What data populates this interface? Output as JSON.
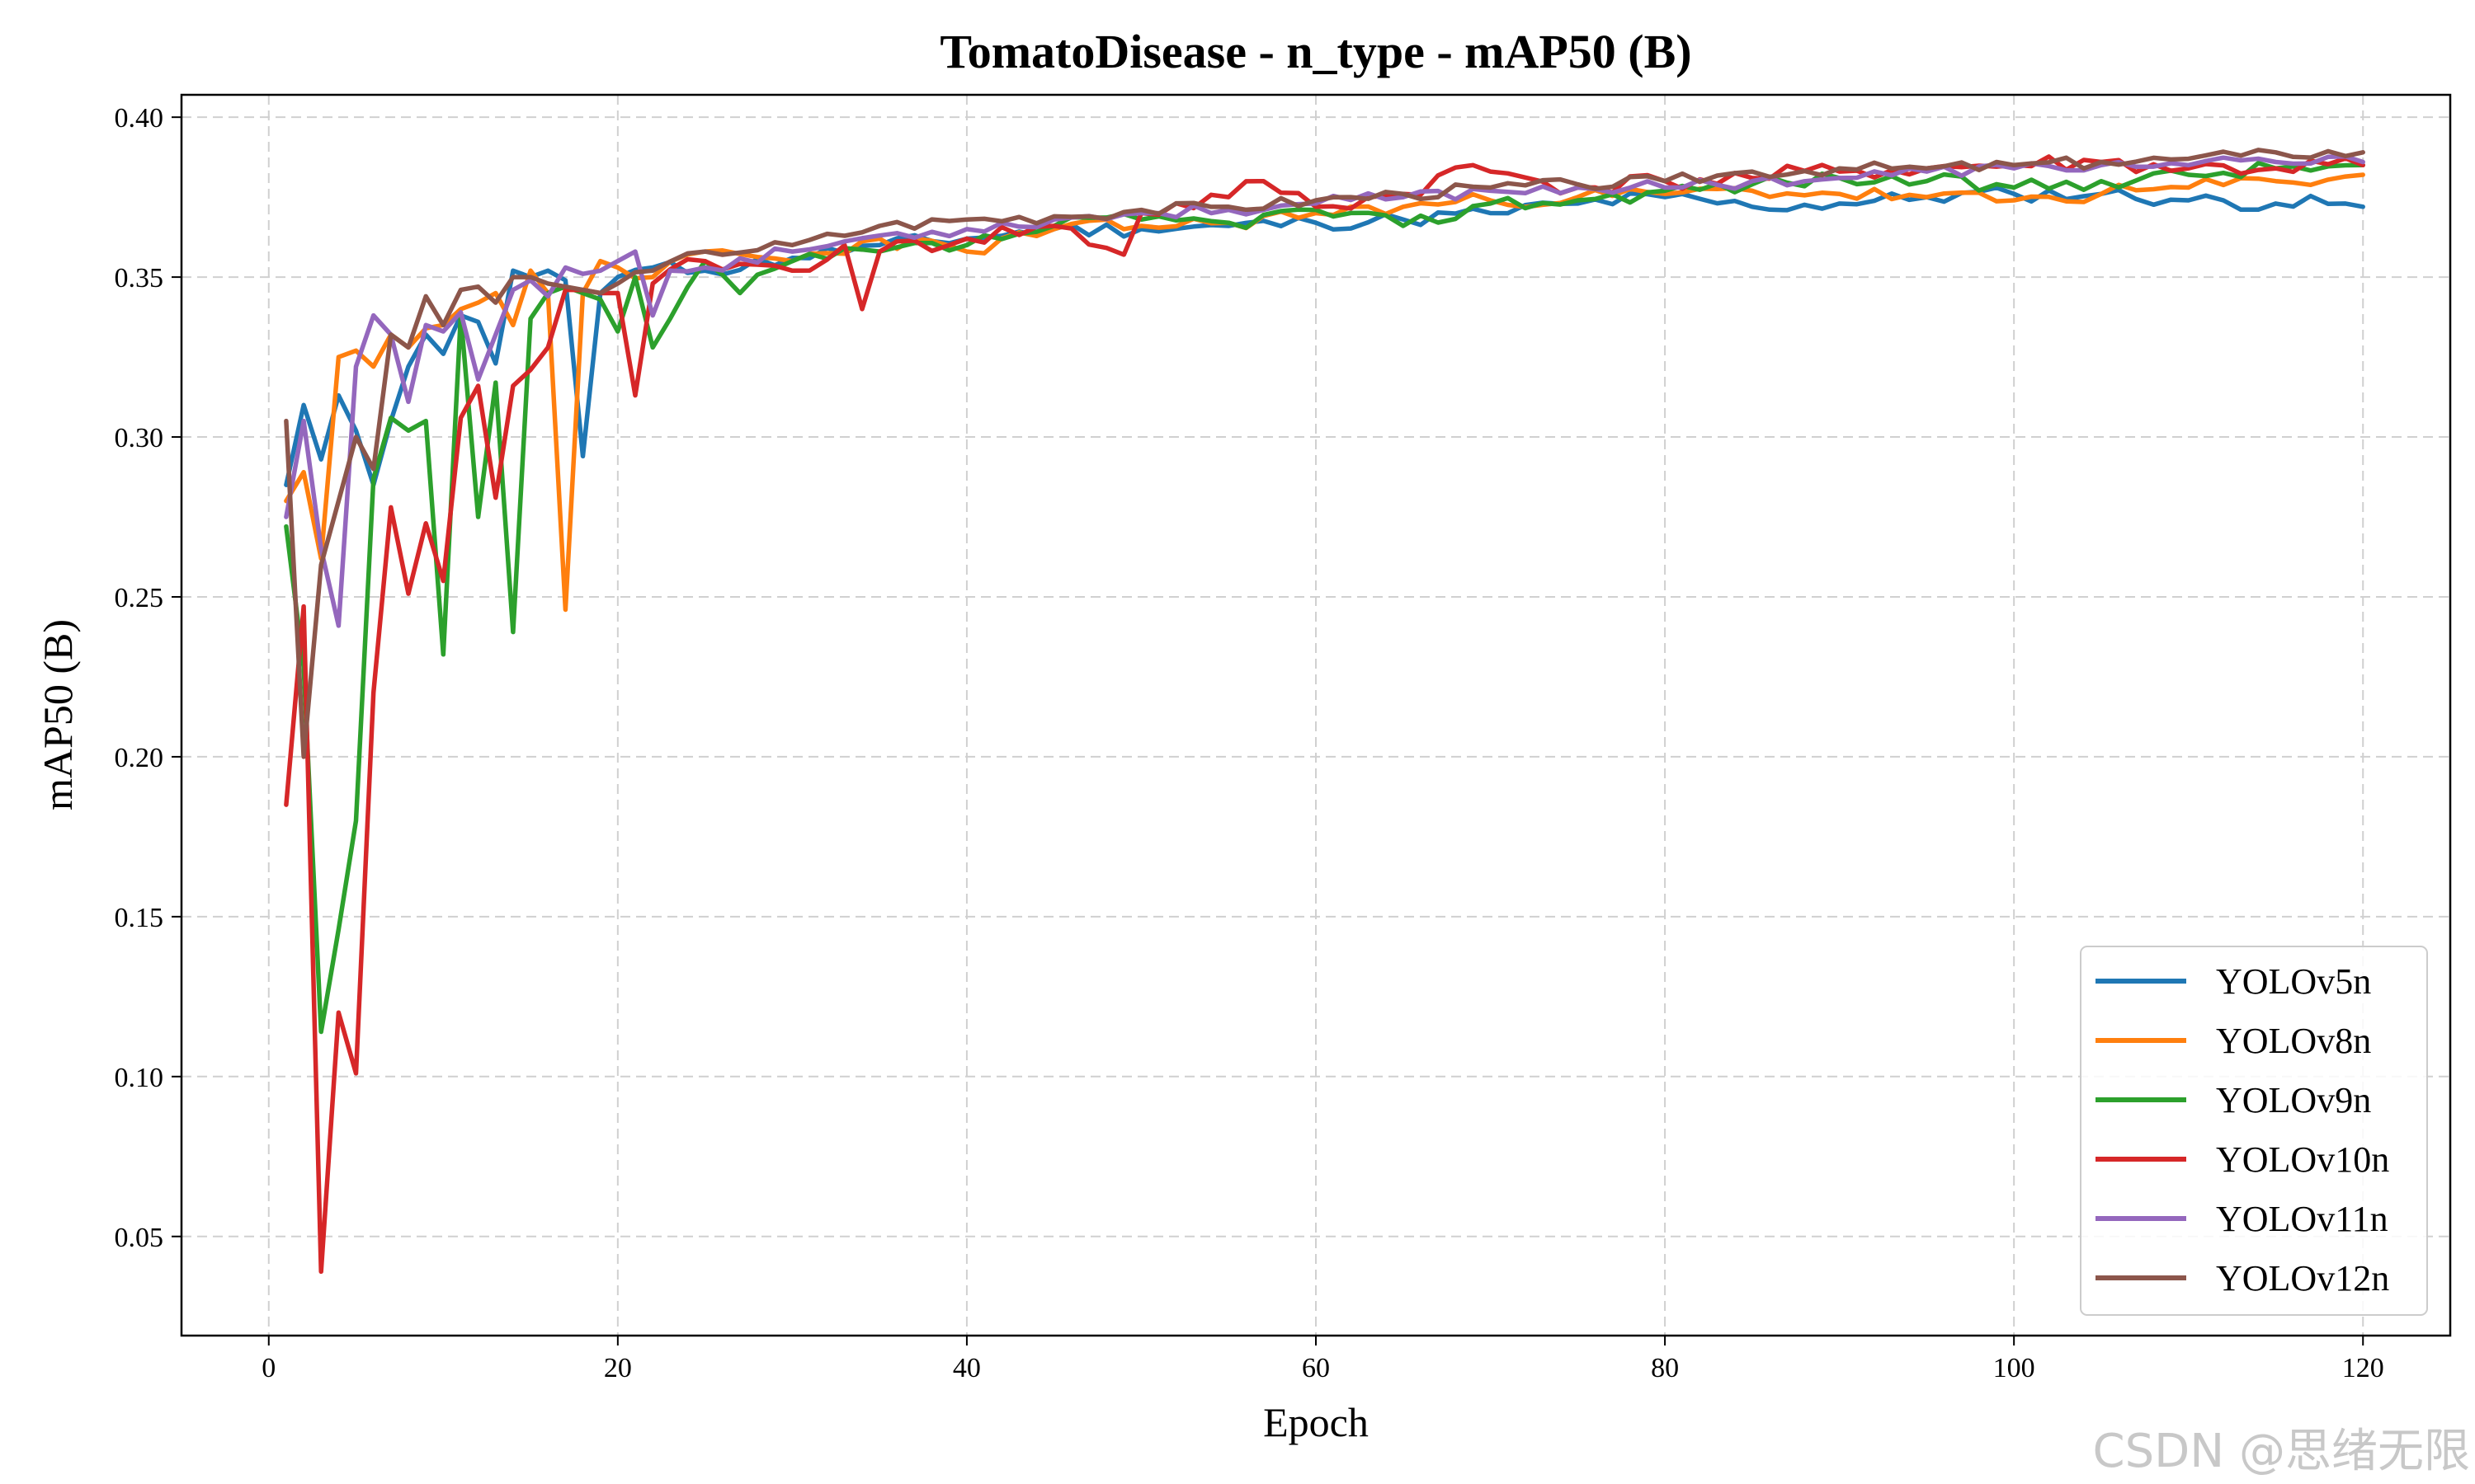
{
  "chart_data": {
    "type": "line",
    "title": "TomatoDisease - n_type - mAP50 (B)",
    "xlabel": "Epoch",
    "ylabel": "mAP50 (B)",
    "xlim": [
      -5,
      125
    ],
    "ylim": [
      0.019,
      0.407
    ],
    "xticks": [
      0,
      20,
      40,
      60,
      80,
      100,
      120
    ],
    "xtick_labels": [
      "0",
      "20",
      "40",
      "60",
      "80",
      "100",
      "120"
    ],
    "yticks": [
      0.05,
      0.1,
      0.15,
      0.2,
      0.25,
      0.3,
      0.35,
      0.4
    ],
    "ytick_labels": [
      "0.05",
      "0.10",
      "0.15",
      "0.20",
      "0.25",
      "0.30",
      "0.35",
      "0.40"
    ],
    "grid": true,
    "legend_position": "bottom-right",
    "anchors": {
      "YOLOv5n": [
        [
          1,
          0.285
        ],
        [
          2,
          0.31
        ],
        [
          3,
          0.293
        ],
        [
          4,
          0.313
        ],
        [
          5,
          0.302
        ],
        [
          6,
          0.285
        ],
        [
          7,
          0.305
        ],
        [
          8,
          0.322
        ],
        [
          9,
          0.332
        ],
        [
          10,
          0.326
        ],
        [
          11,
          0.338
        ],
        [
          12,
          0.336
        ],
        [
          13,
          0.323
        ],
        [
          14,
          0.352
        ],
        [
          15,
          0.35
        ],
        [
          16,
          0.352
        ],
        [
          17,
          0.349
        ],
        [
          18,
          0.294
        ],
        [
          19,
          0.345
        ],
        [
          20,
          0.35
        ],
        [
          22,
          0.353
        ],
        [
          25,
          0.352
        ],
        [
          30,
          0.356
        ],
        [
          35,
          0.36
        ],
        [
          40,
          0.362
        ],
        [
          45,
          0.365
        ],
        [
          50,
          0.365
        ],
        [
          55,
          0.366
        ],
        [
          60,
          0.367
        ],
        [
          65,
          0.368
        ],
        [
          70,
          0.37
        ],
        [
          75,
          0.373
        ],
        [
          80,
          0.375
        ],
        [
          85,
          0.372
        ],
        [
          90,
          0.373
        ],
        [
          95,
          0.375
        ],
        [
          100,
          0.376
        ],
        [
          105,
          0.376
        ],
        [
          110,
          0.374
        ],
        [
          115,
          0.373
        ],
        [
          119,
          0.373
        ],
        [
          120,
          0.372
        ]
      ],
      "YOLOv8n": [
        [
          1,
          0.28
        ],
        [
          2,
          0.289
        ],
        [
          3,
          0.262
        ],
        [
          4,
          0.325
        ],
        [
          5,
          0.327
        ],
        [
          6,
          0.322
        ],
        [
          7,
          0.332
        ],
        [
          8,
          0.328
        ],
        [
          9,
          0.334
        ],
        [
          10,
          0.335
        ],
        [
          11,
          0.34
        ],
        [
          12,
          0.342
        ],
        [
          13,
          0.345
        ],
        [
          14,
          0.335
        ],
        [
          15,
          0.352
        ],
        [
          16,
          0.345
        ],
        [
          17,
          0.246
        ],
        [
          18,
          0.345
        ],
        [
          19,
          0.355
        ],
        [
          20,
          0.353
        ],
        [
          22,
          0.35
        ],
        [
          25,
          0.358
        ],
        [
          30,
          0.355
        ],
        [
          35,
          0.362
        ],
        [
          40,
          0.358
        ],
        [
          45,
          0.365
        ],
        [
          50,
          0.366
        ],
        [
          55,
          0.367
        ],
        [
          60,
          0.37
        ],
        [
          65,
          0.372
        ],
        [
          70,
          0.374
        ],
        [
          75,
          0.375
        ],
        [
          80,
          0.376
        ],
        [
          85,
          0.377
        ],
        [
          90,
          0.376
        ],
        [
          95,
          0.375
        ],
        [
          100,
          0.374
        ],
        [
          105,
          0.376
        ],
        [
          110,
          0.378
        ],
        [
          115,
          0.38
        ],
        [
          120,
          0.382
        ]
      ],
      "YOLOv9n": [
        [
          1,
          0.272
        ],
        [
          2,
          0.228
        ],
        [
          3,
          0.114
        ],
        [
          4,
          0.146
        ],
        [
          5,
          0.18
        ],
        [
          6,
          0.287
        ],
        [
          7,
          0.306
        ],
        [
          8,
          0.302
        ],
        [
          9,
          0.305
        ],
        [
          10,
          0.232
        ],
        [
          11,
          0.338
        ],
        [
          12,
          0.275
        ],
        [
          13,
          0.317
        ],
        [
          14,
          0.239
        ],
        [
          15,
          0.337
        ],
        [
          16,
          0.345
        ],
        [
          17,
          0.347
        ],
        [
          18,
          0.345
        ],
        [
          19,
          0.343
        ],
        [
          20,
          0.333
        ],
        [
          21,
          0.35
        ],
        [
          22,
          0.328
        ],
        [
          23,
          0.337
        ],
        [
          25,
          0.355
        ],
        [
          27,
          0.345
        ],
        [
          30,
          0.355
        ],
        [
          35,
          0.358
        ],
        [
          40,
          0.36
        ],
        [
          45,
          0.366
        ],
        [
          50,
          0.368
        ],
        [
          55,
          0.367
        ],
        [
          60,
          0.371
        ],
        [
          65,
          0.366
        ],
        [
          70,
          0.373
        ],
        [
          75,
          0.374
        ],
        [
          80,
          0.377
        ],
        [
          85,
          0.379
        ],
        [
          90,
          0.381
        ],
        [
          95,
          0.38
        ],
        [
          100,
          0.378
        ],
        [
          105,
          0.38
        ],
        [
          110,
          0.382
        ],
        [
          115,
          0.384
        ],
        [
          120,
          0.385
        ]
      ],
      "YOLOv10n": [
        [
          1,
          0.185
        ],
        [
          2,
          0.247
        ],
        [
          3,
          0.039
        ],
        [
          4,
          0.12
        ],
        [
          5,
          0.101
        ],
        [
          6,
          0.22
        ],
        [
          7,
          0.278
        ],
        [
          8,
          0.251
        ],
        [
          9,
          0.273
        ],
        [
          10,
          0.255
        ],
        [
          11,
          0.306
        ],
        [
          12,
          0.316
        ],
        [
          13,
          0.281
        ],
        [
          14,
          0.316
        ],
        [
          15,
          0.321
        ],
        [
          16,
          0.328
        ],
        [
          17,
          0.346
        ],
        [
          18,
          0.346
        ],
        [
          19,
          0.345
        ],
        [
          20,
          0.345
        ],
        [
          21,
          0.313
        ],
        [
          22,
          0.348
        ],
        [
          25,
          0.355
        ],
        [
          30,
          0.352
        ],
        [
          33,
          0.36
        ],
        [
          34,
          0.34
        ],
        [
          35,
          0.358
        ],
        [
          40,
          0.362
        ],
        [
          45,
          0.366
        ],
        [
          49,
          0.357
        ],
        [
          50,
          0.37
        ],
        [
          55,
          0.375
        ],
        [
          57,
          0.38
        ],
        [
          60,
          0.372
        ],
        [
          65,
          0.376
        ],
        [
          69,
          0.385
        ],
        [
          70,
          0.383
        ],
        [
          75,
          0.378
        ],
        [
          80,
          0.38
        ],
        [
          85,
          0.381
        ],
        [
          90,
          0.383
        ],
        [
          95,
          0.384
        ],
        [
          100,
          0.385
        ],
        [
          105,
          0.386
        ],
        [
          110,
          0.384
        ],
        [
          115,
          0.384
        ],
        [
          120,
          0.385
        ]
      ],
      "YOLOv11n": [
        [
          1,
          0.275
        ],
        [
          2,
          0.305
        ],
        [
          3,
          0.265
        ],
        [
          4,
          0.241
        ],
        [
          5,
          0.322
        ],
        [
          6,
          0.338
        ],
        [
          7,
          0.332
        ],
        [
          8,
          0.311
        ],
        [
          9,
          0.335
        ],
        [
          10,
          0.333
        ],
        [
          11,
          0.339
        ],
        [
          12,
          0.318
        ],
        [
          13,
          0.332
        ],
        [
          14,
          0.346
        ],
        [
          15,
          0.349
        ],
        [
          16,
          0.344
        ],
        [
          17,
          0.353
        ],
        [
          18,
          0.351
        ],
        [
          19,
          0.352
        ],
        [
          20,
          0.355
        ],
        [
          21,
          0.358
        ],
        [
          22,
          0.338
        ],
        [
          23,
          0.352
        ],
        [
          25,
          0.353
        ],
        [
          30,
          0.358
        ],
        [
          35,
          0.363
        ],
        [
          40,
          0.365
        ],
        [
          45,
          0.368
        ],
        [
          50,
          0.37
        ],
        [
          55,
          0.371
        ],
        [
          60,
          0.373
        ],
        [
          65,
          0.375
        ],
        [
          70,
          0.377
        ],
        [
          75,
          0.378
        ],
        [
          80,
          0.378
        ],
        [
          85,
          0.38
        ],
        [
          90,
          0.381
        ],
        [
          95,
          0.383
        ],
        [
          100,
          0.384
        ],
        [
          105,
          0.385
        ],
        [
          110,
          0.385
        ],
        [
          115,
          0.386
        ],
        [
          120,
          0.386
        ]
      ],
      "YOLOv12n": [
        [
          1,
          0.305
        ],
        [
          2,
          0.2
        ],
        [
          3,
          0.26
        ],
        [
          4,
          0.28
        ],
        [
          5,
          0.3
        ],
        [
          6,
          0.29
        ],
        [
          7,
          0.332
        ],
        [
          8,
          0.328
        ],
        [
          9,
          0.344
        ],
        [
          10,
          0.335
        ],
        [
          11,
          0.346
        ],
        [
          12,
          0.347
        ],
        [
          13,
          0.342
        ],
        [
          14,
          0.35
        ],
        [
          15,
          0.35
        ],
        [
          16,
          0.348
        ],
        [
          17,
          0.347
        ],
        [
          18,
          0.346
        ],
        [
          19,
          0.345
        ],
        [
          20,
          0.348
        ],
        [
          22,
          0.352
        ],
        [
          25,
          0.358
        ],
        [
          30,
          0.36
        ],
        [
          35,
          0.366
        ],
        [
          40,
          0.368
        ],
        [
          45,
          0.369
        ],
        [
          50,
          0.371
        ],
        [
          55,
          0.372
        ],
        [
          60,
          0.374
        ],
        [
          65,
          0.376
        ],
        [
          70,
          0.378
        ],
        [
          75,
          0.379
        ],
        [
          80,
          0.38
        ],
        [
          85,
          0.383
        ],
        [
          90,
          0.384
        ],
        [
          95,
          0.384
        ],
        [
          100,
          0.385
        ],
        [
          105,
          0.386
        ],
        [
          110,
          0.387
        ],
        [
          113,
          0.388
        ],
        [
          115,
          0.389
        ],
        [
          120,
          0.389
        ]
      ]
    },
    "series": [
      {
        "name": "YOLOv5n",
        "color": "#1f77b4",
        "noise": 0.0025,
        "seed": 11
      },
      {
        "name": "YOLOv8n",
        "color": "#ff7f0e",
        "noise": 0.0025,
        "seed": 23
      },
      {
        "name": "YOLOv9n",
        "color": "#2ca02c",
        "noise": 0.0025,
        "seed": 37
      },
      {
        "name": "YOLOv10n",
        "color": "#d62728",
        "noise": 0.003,
        "seed": 41
      },
      {
        "name": "YOLOv11n",
        "color": "#9467bd",
        "noise": 0.002,
        "seed": 53
      },
      {
        "name": "YOLOv12n",
        "color": "#8c564b",
        "noise": 0.002,
        "seed": 67
      }
    ]
  },
  "watermark": "CSDN @思绪无限"
}
